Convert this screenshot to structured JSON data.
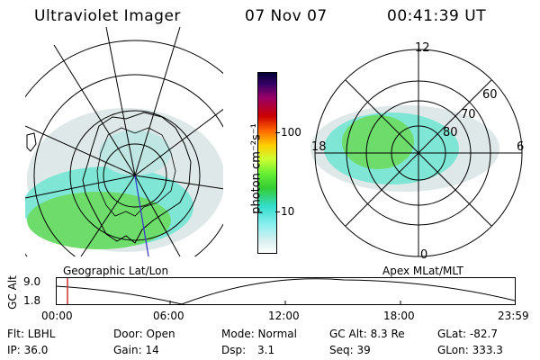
{
  "header": {
    "instrument": "Ultraviolet Imager",
    "date": "07 Nov 07",
    "time": "00:41:39 UT"
  },
  "colorbar": {
    "unit": "photon cm⁻²s⁻¹",
    "ticks": [
      "100",
      "10"
    ]
  },
  "left_panel": {
    "caption": "Geographic Lat/Lon"
  },
  "right_panel": {
    "caption": "Apex MLat/MLT",
    "mlt_labels": {
      "top": "12",
      "left": "18",
      "right": "6",
      "bottom": "0"
    },
    "lat_labels": [
      "60",
      "70",
      "80"
    ]
  },
  "altitude_plot": {
    "ylabel": "GC Alt",
    "yticks": [
      "9.0",
      "1.8"
    ],
    "xticks": [
      "00:00",
      "06:00",
      "12:00",
      "18:00",
      "23:59"
    ]
  },
  "footer": {
    "row1": [
      "Flt: LBHL",
      "Door: Open",
      "Mode: Normal",
      "GC Alt: 8.3 Re",
      "GLat: -82.7"
    ],
    "row2": [
      "IP: 36.0",
      "Gain: 14",
      "Dsp:",
      "3.1",
      "Seq: 39",
      "GLon: 333.3"
    ]
  },
  "colors": {
    "auroral_green": "#33cc33",
    "auroral_cyan": "#33ddcc",
    "noise_gray": "#cfd8d8",
    "time_marker": "#cc3333"
  }
}
